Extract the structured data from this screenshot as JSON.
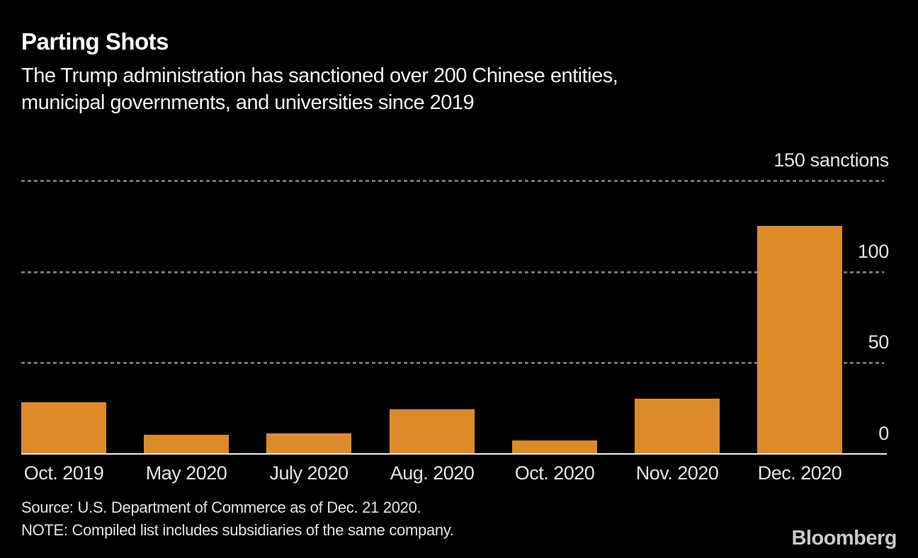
{
  "colors": {
    "background": "#000000",
    "bar": "#DD8B28",
    "title_text": "#FFFFFF",
    "subtitle_text": "#F4F4F4",
    "tick_text": "#E3E3E3",
    "gridline": "#757575",
    "axis_line": "#E8E8E8",
    "footer_text": "#E3E3E3",
    "brand_text": "#C9C9C9"
  },
  "header": {
    "title": "Parting Shots",
    "subtitle_lines": [
      "The Trump administration has sanctioned over 200 Chinese entities,",
      "municipal governments, and universities since 2019"
    ]
  },
  "chart_data": {
    "type": "bar",
    "title": "Parting Shots",
    "subtitle": "The Trump administration has sanctioned over 200 Chinese entities, municipal governments, and universities since 2019",
    "categories": [
      "Oct. 2019",
      "May 2020",
      "July 2020",
      "Aug. 2020",
      "Oct. 2020",
      "Nov. 2020",
      "Dec. 2020"
    ],
    "values": [
      28,
      10,
      11,
      24,
      7,
      30,
      125
    ],
    "xlabel": "",
    "ylabel": "sanctions",
    "ylim": [
      0,
      150
    ],
    "y_ticks": [
      0,
      50,
      100,
      150
    ],
    "y_tick_labels": [
      "0",
      "50",
      "100",
      "150 sanctions"
    ],
    "grid": "horizontal-dotted",
    "legend": "none",
    "bar_color": "#DD8B28"
  },
  "footer": {
    "source": "Source: U.S. Department of Commerce as of Dec. 21 2020.",
    "note": "NOTE: Compiled list includes subsidiaries of the same company.",
    "brand": "Bloomberg"
  }
}
